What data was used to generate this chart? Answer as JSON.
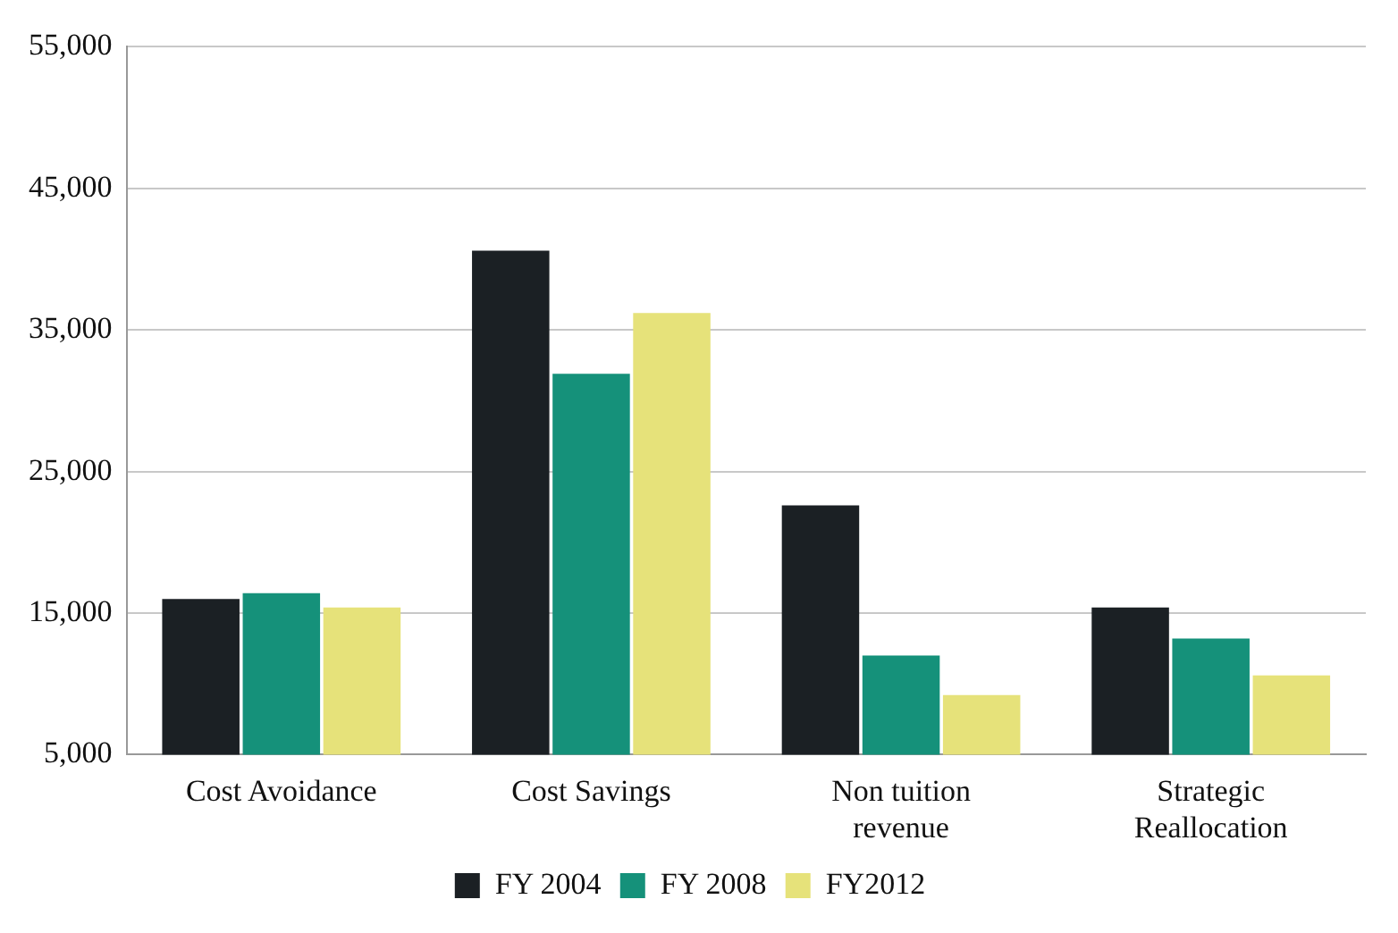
{
  "chart_data": {
    "type": "bar",
    "categories": [
      "Cost Avoidance",
      "Cost Savings",
      "Non tuition revenue",
      "Strategic Reallocation"
    ],
    "series": [
      {
        "name": "FY 2004",
        "color": "#1b2024",
        "values": [
          16000,
          40600,
          22600,
          15400
        ]
      },
      {
        "name": "FY 2008",
        "color": "#15917a",
        "values": [
          16400,
          31900,
          12000,
          13200
        ]
      },
      {
        "name": "FY2012",
        "color": "#e6e27a",
        "values": [
          15400,
          36200,
          9200,
          10600
        ]
      }
    ],
    "ylim": [
      5000,
      55000
    ],
    "yticks": [
      {
        "value": 5000,
        "label": "5,000"
      },
      {
        "value": 15000,
        "label": "15,000"
      },
      {
        "value": 25000,
        "label": "25,000"
      },
      {
        "value": 35000,
        "label": "35,000"
      },
      {
        "value": 45000,
        "label": "45,000"
      },
      {
        "value": 55000,
        "label": "55,000"
      }
    ],
    "grid": "y",
    "legend": "bottom"
  }
}
